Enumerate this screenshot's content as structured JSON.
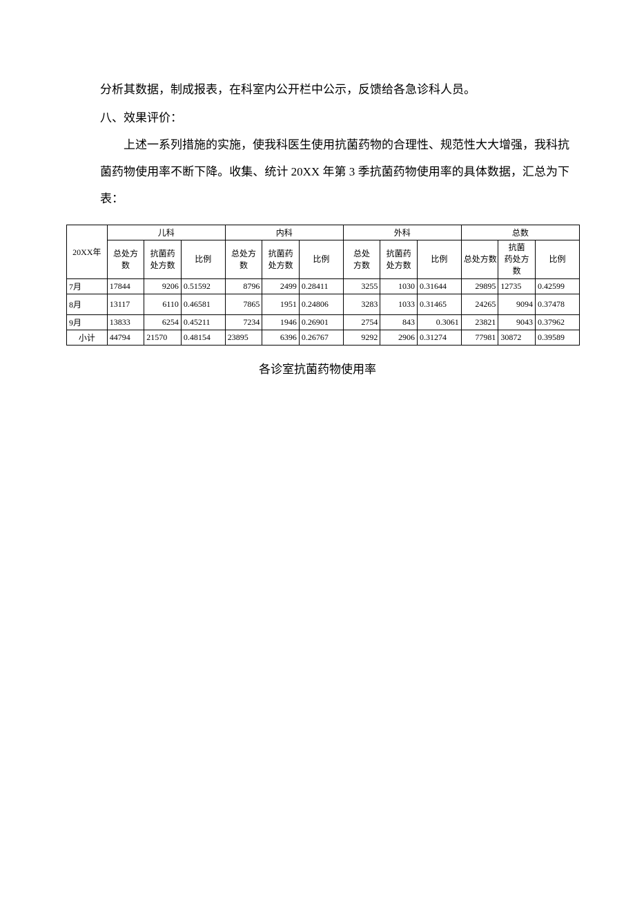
{
  "paragraphs": {
    "p1": "分析其数据，制成报表，在科室内公开栏中公示，反馈给各急诊科人员。",
    "h1": "八、效果评价：",
    "p2": "上述一系列措施的实施，使我科医生使用抗菌药物的合理性、规范性大大增强，我科抗菌药物使用率不断下降。收集、统计 20XX 年第 3 季抗菌药物使用率的具体数据，汇总为下表："
  },
  "table": {
    "groups": [
      "儿科",
      "内科",
      "外科",
      "总数"
    ],
    "year_col": "20XX年",
    "sub_headers": {
      "total_rx": "总处方\n数",
      "anti_rx": "抗菌药\n处方数",
      "ratio": "比例",
      "total_rx_short": "总处\n方数",
      "total_rx_one": "总处方数",
      "anti_rx_alt": "抗菌\n药处方\n数"
    },
    "rows": [
      {
        "label": "7月",
        "ped": {
          "total": "17844",
          "anti": "9206",
          "ratio": "0.51592"
        },
        "int": {
          "total": "8796",
          "anti": "2499",
          "ratio": "0.28411"
        },
        "sur": {
          "total": "3255",
          "anti": "1030",
          "ratio": "0.31644"
        },
        "sum": {
          "total": "29895",
          "anti": "12735",
          "ratio": "0.42599"
        }
      },
      {
        "label": "8月",
        "ped": {
          "total": "13117",
          "anti": "6110",
          "ratio": "0.46581"
        },
        "int": {
          "total": "7865",
          "anti": "1951",
          "ratio": "0.24806"
        },
        "sur": {
          "total": "3283",
          "anti": "1033",
          "ratio": "0.31465"
        },
        "sum": {
          "total": "24265",
          "anti": "9094",
          "ratio": "0.37478"
        }
      },
      {
        "label": "9月",
        "ped": {
          "total": "13833",
          "anti": "6254",
          "ratio": "0.45211"
        },
        "int": {
          "total": "7234",
          "anti": "1946",
          "ratio": "0.26901"
        },
        "sur": {
          "total": "2754",
          "anti": "843",
          "ratio": "0.3061"
        },
        "sum": {
          "total": "23821",
          "anti": "9043",
          "ratio": "0.37962"
        }
      },
      {
        "label": "小计",
        "ped": {
          "total": "44794",
          "anti": "21570",
          "ratio": "0.48154"
        },
        "int": {
          "total": "23895",
          "anti": "6396",
          "ratio": "0.26767"
        },
        "sur": {
          "total": "9292",
          "anti": "2906",
          "ratio": "0.31274"
        },
        "sum": {
          "total": "77981",
          "anti": "30872",
          "ratio": "0.39589"
        }
      }
    ]
  },
  "caption": "各诊室抗菌药物使用率",
  "style": {
    "background_color": "#ffffff",
    "text_color": "#000000",
    "border_color": "#000000",
    "body_fontsize_pt": 13,
    "table_fontsize_pt": 9,
    "font_family": "SimSun"
  }
}
